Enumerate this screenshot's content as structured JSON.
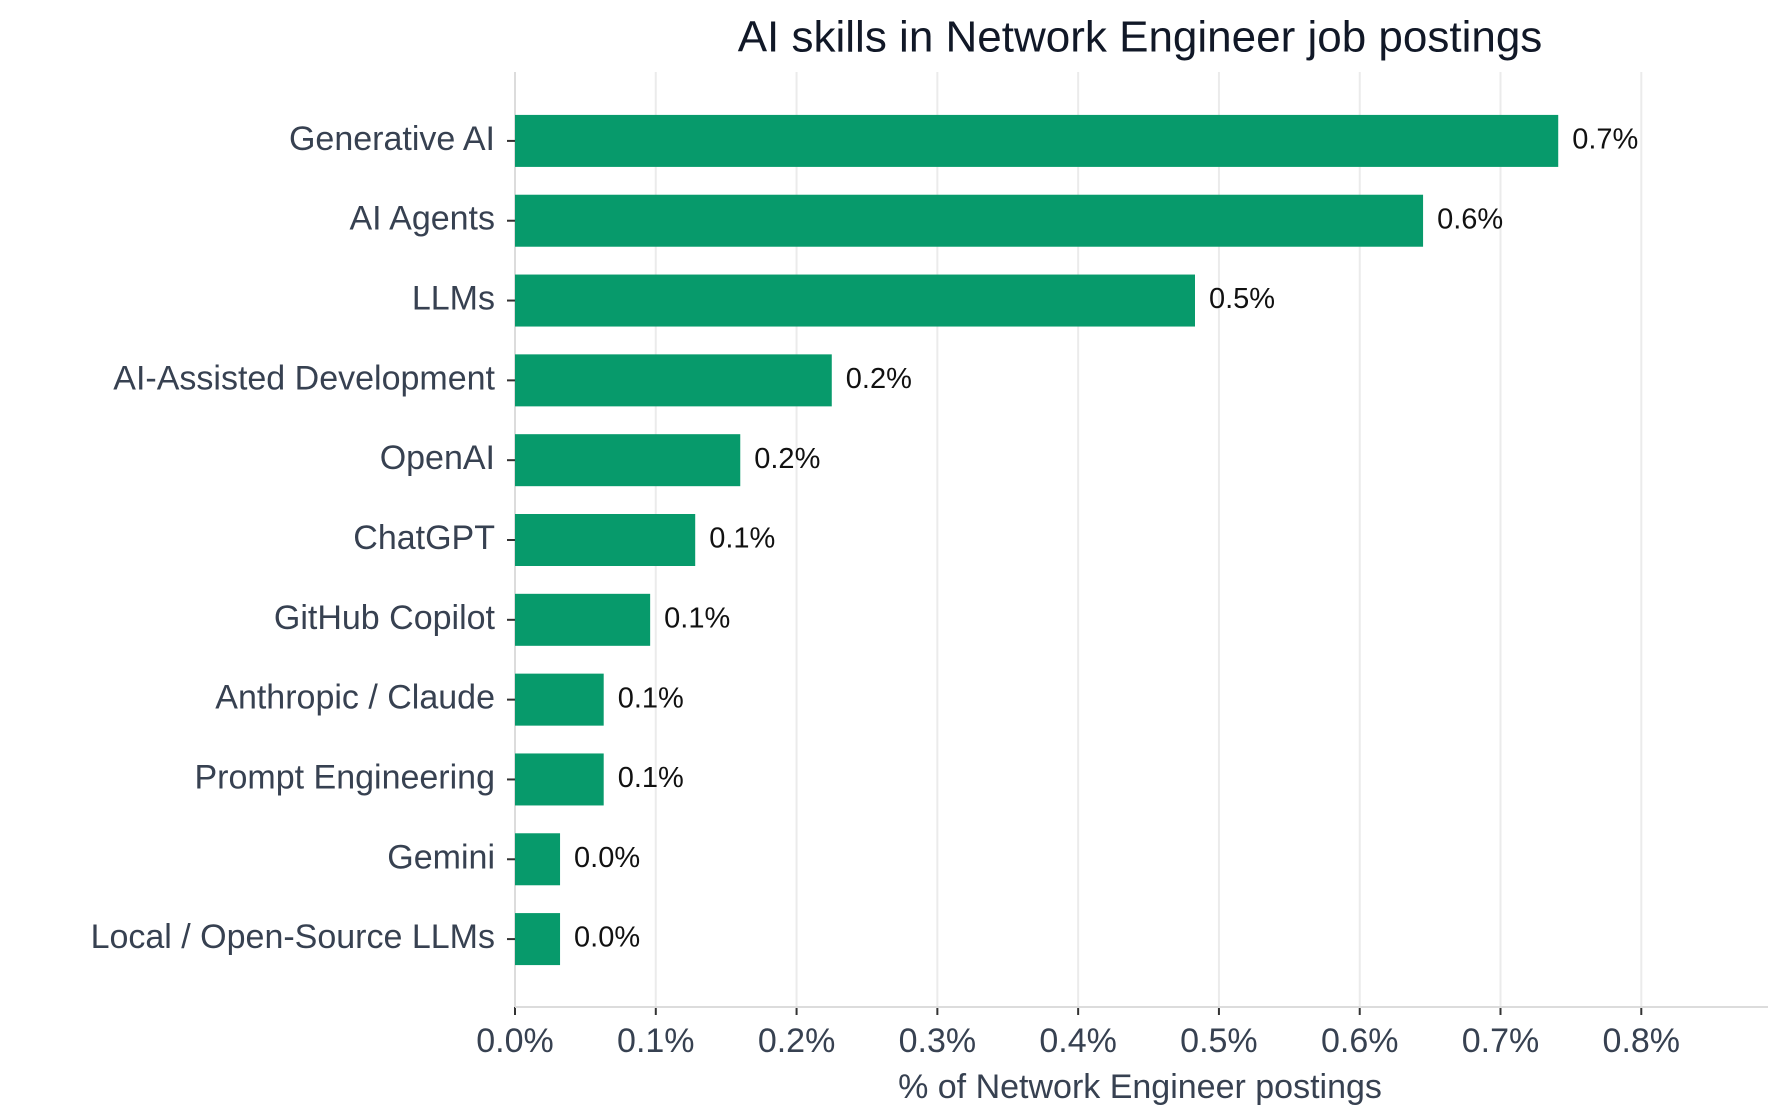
{
  "chart_data": {
    "type": "bar",
    "orientation": "horizontal",
    "title": "AI skills in Network Engineer job postings",
    "xlabel": "% of Network Engineer postings",
    "categories": [
      "Generative AI",
      "AI Agents",
      "LLMs",
      "AI-Assisted Development",
      "OpenAI",
      "ChatGPT",
      "GitHub Copilot",
      "Anthropic / Claude",
      "Prompt Engineering",
      "Gemini",
      "Local / Open-Source LLMs"
    ],
    "values": [
      0.741,
      0.645,
      0.483,
      0.225,
      0.16,
      0.128,
      0.096,
      0.063,
      0.063,
      0.032,
      0.032
    ],
    "value_labels": [
      "0.7%",
      "0.6%",
      "0.5%",
      "0.2%",
      "0.2%",
      "0.1%",
      "0.1%",
      "0.1%",
      "0.1%",
      "0.0%",
      "0.0%"
    ],
    "color": "#079a6b",
    "xlim": [
      0,
      0.89
    ],
    "xticks": [
      {
        "value": 0,
        "label": "0.0%"
      },
      {
        "value": 0.1,
        "label": "0.1%"
      },
      {
        "value": 0.2,
        "label": "0.2%"
      },
      {
        "value": 0.3,
        "label": "0.3%"
      },
      {
        "value": 0.4,
        "label": "0.4%"
      },
      {
        "value": 0.5,
        "label": "0.5%"
      },
      {
        "value": 0.6,
        "label": "0.6%"
      },
      {
        "value": 0.7,
        "label": "0.7%"
      },
      {
        "value": 0.8,
        "label": "0.8%"
      }
    ],
    "grid": true
  }
}
